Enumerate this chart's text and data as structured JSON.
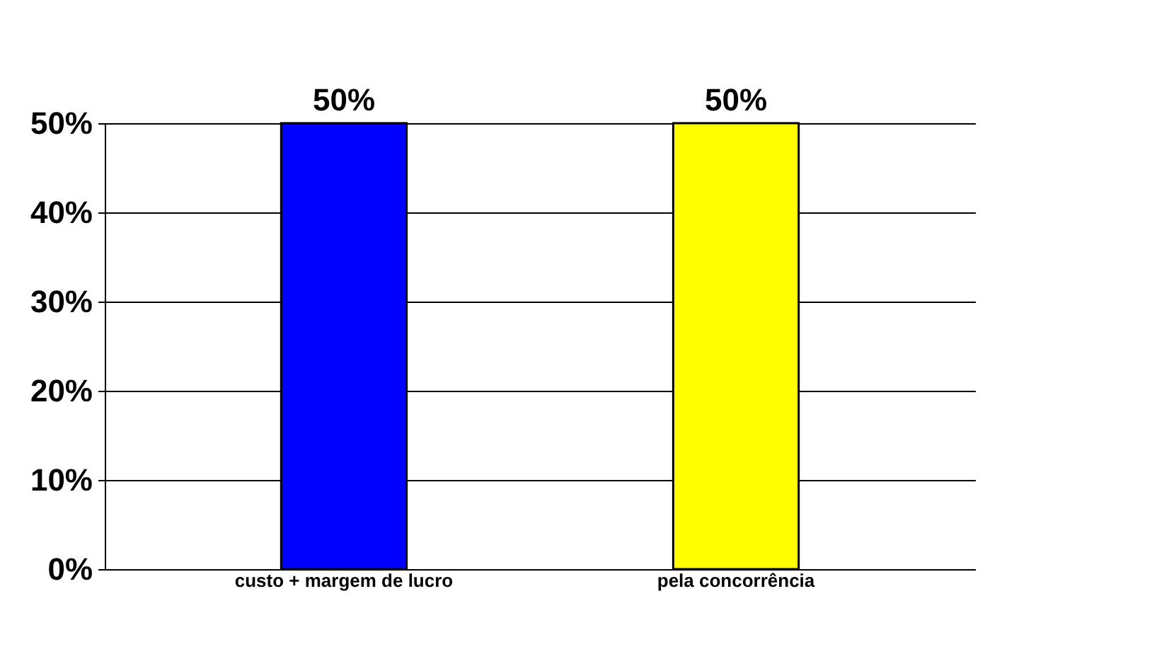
{
  "chart_data": {
    "type": "bar",
    "categories": [
      "custo + margem de lucro",
      "pela concorrência"
    ],
    "values": [
      50,
      50
    ],
    "colors": [
      "#0000ff",
      "#ffff00"
    ],
    "value_labels": [
      "50%",
      "50%"
    ],
    "ylim": [
      0,
      50
    ],
    "yticks": [
      {
        "value": 0,
        "label": "0%"
      },
      {
        "value": 10,
        "label": "10%"
      },
      {
        "value": 20,
        "label": "20%"
      },
      {
        "value": 30,
        "label": "30%"
      },
      {
        "value": 40,
        "label": "40%"
      },
      {
        "value": 50,
        "label": "50%"
      }
    ],
    "grid": "y"
  }
}
